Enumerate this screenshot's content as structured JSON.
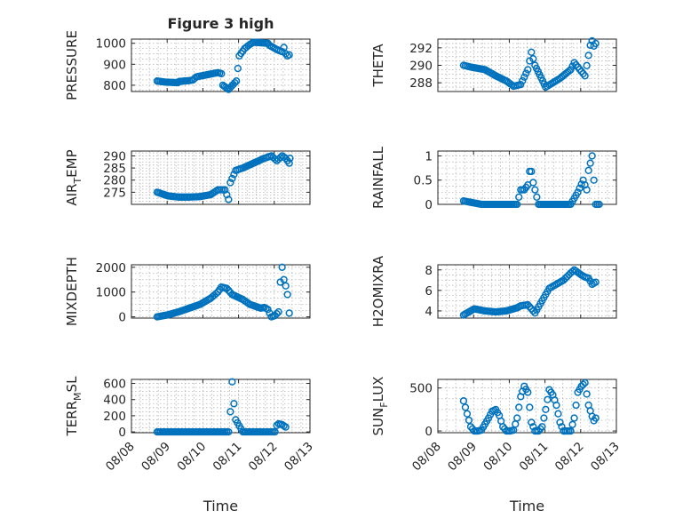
{
  "chart_data": [
    {
      "type": "scatter",
      "title": "Figure 3 high",
      "ylabel": "PRESSURE",
      "xlabel": "",
      "ylim": [
        770,
        1020
      ],
      "yticks": [
        800,
        900,
        1000
      ],
      "x_days": [
        [
          0.0,
          0.22,
          0.58
        ],
        [
          0.62,
          0.9,
          1.0
        ],
        [
          1.1,
          1.7,
          1.8
        ],
        [
          1.84,
          2.0,
          2.22
        ],
        [
          2.3,
          2.45,
          2.6
        ],
        [
          2.7,
          3.1,
          3.15
        ],
        [
          3.35,
          3.5,
          3.55
        ],
        [
          3.6,
          3.65,
          3.7
        ]
      ],
      "y": [
        [
          820,
          815,
          812
        ],
        [
          818,
          822,
          825
        ],
        [
          840,
          860,
          855
        ],
        [
          800,
          780,
          820
        ],
        [
          940,
          975,
          995
        ],
        [
          1005,
          1000,
          990
        ],
        [
          970,
          960,
          980
        ],
        [
          950,
          940,
          945
        ]
      ],
      "grid": true
    },
    {
      "type": "scatter",
      "title": "",
      "ylabel": "THETA",
      "xlabel": "",
      "ylim": [
        287,
        293
      ],
      "yticks": [
        288,
        290,
        292
      ],
      "x_days": [
        [
          0.0,
          0.2,
          0.6
        ],
        [
          0.9,
          1.2,
          1.4
        ],
        [
          1.6,
          1.8,
          1.9
        ],
        [
          2.0,
          2.3,
          2.5
        ],
        [
          2.7,
          3.0,
          3.1
        ],
        [
          3.2,
          3.4,
          3.55
        ],
        [
          3.6,
          3.65,
          3.7
        ]
      ],
      "y": [
        [
          290,
          289.8,
          289.5
        ],
        [
          288.8,
          288.2,
          287.6
        ],
        [
          287.8,
          289.5,
          291.5
        ],
        [
          290,
          287.5,
          288
        ],
        [
          288.5,
          289.5,
          290.3
        ],
        [
          289.8,
          288.8,
          292.3
        ],
        [
          292.8,
          292.2,
          292.5
        ]
      ],
      "grid": true
    },
    {
      "type": "scatter",
      "title": "",
      "ylabel": "AIR_TEMP",
      "xlabel": "",
      "ylim": [
        270,
        292
      ],
      "yticks": [
        275,
        280,
        285,
        290
      ],
      "x_days": [
        [
          0.0,
          0.3,
          0.6
        ],
        [
          0.9,
          1.2,
          1.5
        ],
        [
          1.7,
          1.9,
          2.0
        ],
        [
          2.05,
          2.2,
          2.4
        ],
        [
          2.7,
          3.0,
          3.2
        ],
        [
          3.35,
          3.5,
          3.6
        ],
        [
          3.65,
          3.7,
          3.72
        ]
      ],
      "y": [
        [
          275,
          273.5,
          273
        ],
        [
          273,
          273.2,
          274
        ],
        [
          276,
          276,
          272
        ],
        [
          279,
          284,
          285
        ],
        [
          287,
          289,
          290
        ],
        [
          288,
          290,
          289
        ],
        [
          288,
          287,
          289
        ]
      ],
      "grid": true
    },
    {
      "type": "scatter",
      "title": "",
      "ylabel": "RAINFALL",
      "xlabel": "",
      "ylim": [
        0,
        1.1
      ],
      "yticks": [
        0,
        0.5,
        1
      ],
      "x_days": [
        [
          0.0,
          0.5,
          1.0
        ],
        [
          1.5,
          1.6,
          1.7
        ],
        [
          1.8,
          1.85,
          1.9
        ],
        [
          1.95,
          2.1,
          2.5
        ],
        [
          3.0,
          3.2,
          3.35
        ],
        [
          3.45,
          3.5,
          3.6
        ],
        [
          3.7,
          3.75,
          3.8
        ]
      ],
      "y": [
        [
          0.07,
          0,
          0
        ],
        [
          0,
          0.3,
          0.3
        ],
        [
          0.4,
          0.68,
          0.68
        ],
        [
          0.45,
          0,
          0
        ],
        [
          0,
          0.25,
          0.5
        ],
        [
          0.3,
          0.7,
          1.0
        ],
        [
          0,
          0,
          0
        ]
      ],
      "grid": true
    },
    {
      "type": "scatter",
      "title": "",
      "ylabel": "MIXDEPTH",
      "xlabel": "",
      "ylim": [
        -50,
        2100
      ],
      "yticks": [
        0,
        1000,
        2000
      ],
      "x_days": [
        [
          0.0,
          0.3,
          0.6
        ],
        [
          0.9,
          1.2,
          1.5
        ],
        [
          1.7,
          1.8,
          1.95
        ],
        [
          2.1,
          2.4,
          2.6
        ],
        [
          2.9,
          3.0,
          3.1
        ],
        [
          3.2,
          3.3,
          3.4
        ],
        [
          3.45,
          3.5,
          3.55
        ],
        [
          3.6,
          3.65,
          3.7
        ]
      ],
      "y": [
        [
          0,
          80,
          200
        ],
        [
          350,
          500,
          750
        ],
        [
          1000,
          1200,
          1150
        ],
        [
          900,
          700,
          500
        ],
        [
          350,
          380,
          300
        ],
        [
          0,
          50,
          200
        ],
        [
          1400,
          2000,
          1500
        ],
        [
          1250,
          900,
          150
        ]
      ],
      "grid": true
    },
    {
      "type": "scatter",
      "title": "",
      "ylabel": "H2OMIXRA",
      "xlabel": "",
      "ylim": [
        3.3,
        8.5
      ],
      "yticks": [
        4,
        6,
        8
      ],
      "x_days": [
        [
          0.0,
          0.3,
          0.6
        ],
        [
          0.9,
          1.2,
          1.5
        ],
        [
          1.6,
          1.8,
          2.0
        ],
        [
          2.2,
          2.4,
          2.6
        ],
        [
          2.8,
          3.0,
          3.1
        ],
        [
          3.3,
          3.4,
          3.5
        ],
        [
          3.55,
          3.6,
          3.7
        ]
      ],
      "y": [
        [
          3.6,
          4.2,
          4.0
        ],
        [
          3.9,
          4.0,
          4.3
        ],
        [
          4.5,
          4.6,
          3.8
        ],
        [
          5.0,
          6.2,
          6.6
        ],
        [
          7.0,
          7.7,
          8.0
        ],
        [
          7.5,
          7.3,
          7.2
        ],
        [
          6.9,
          6.6,
          6.8
        ]
      ],
      "grid": true
    },
    {
      "type": "scatter",
      "title": "",
      "ylabel": "TERR_MSL",
      "xlabel": "Time",
      "ylim": [
        -10,
        650
      ],
      "yticks": [
        0,
        200,
        400,
        600
      ],
      "x_days": [
        [
          0.0,
          0.5,
          1.0
        ],
        [
          1.5,
          1.9,
          2.0
        ],
        [
          2.05,
          2.1,
          2.15
        ],
        [
          2.2,
          2.4,
          2.9
        ],
        [
          3.1,
          3.3,
          3.35
        ],
        [
          3.4,
          3.5,
          3.6
        ]
      ],
      "y": [
        [
          0,
          0,
          0
        ],
        [
          0,
          0,
          0
        ],
        [
          250,
          620,
          350
        ],
        [
          150,
          0,
          0
        ],
        [
          0,
          0,
          80
        ],
        [
          100,
          90,
          60
        ]
      ],
      "grid": true
    },
    {
      "type": "scatter",
      "title": "",
      "ylabel": "SUN_FLUX",
      "xlabel": "Time",
      "ylim": [
        -20,
        600
      ],
      "yticks": [
        0,
        500
      ],
      "x_days": [
        [
          0.0,
          0.1,
          0.2
        ],
        [
          0.3,
          0.4,
          0.5
        ],
        [
          0.6,
          0.7,
          0.8
        ],
        [
          0.9,
          1.0,
          1.1
        ],
        [
          1.2,
          1.3,
          1.4
        ],
        [
          1.5,
          1.6,
          1.7
        ],
        [
          1.8,
          1.9,
          2.0
        ],
        [
          2.1,
          2.2,
          2.3
        ],
        [
          2.4,
          2.5,
          2.6
        ],
        [
          2.7,
          2.8,
          2.9
        ],
        [
          3.0,
          3.1,
          3.2
        ],
        [
          3.3,
          3.4,
          3.5
        ],
        [
          3.6,
          3.65,
          3.7
        ]
      ],
      "y": [
        [
          350,
          200,
          50
        ],
        [
          0,
          0,
          10
        ],
        [
          80,
          150,
          230
        ],
        [
          250,
          180,
          50
        ],
        [
          0,
          0,
          10
        ],
        [
          150,
          400,
          520
        ],
        [
          450,
          100,
          0
        ],
        [
          0,
          50,
          250
        ],
        [
          480,
          420,
          300
        ],
        [
          100,
          0,
          0
        ],
        [
          0,
          150,
          450
        ],
        [
          520,
          560,
          300
        ],
        [
          170,
          120,
          150
        ]
      ],
      "grid": true
    }
  ],
  "axes": {
    "x_start": "08/08",
    "x_end": "08/13",
    "x_ticks": [
      "08/08",
      "08/09",
      "08/10",
      "08/11",
      "08/12",
      "08/13"
    ]
  },
  "colors": {
    "marker": "#0072bd",
    "axis": "#262626",
    "grid": "#b5b5b5"
  }
}
